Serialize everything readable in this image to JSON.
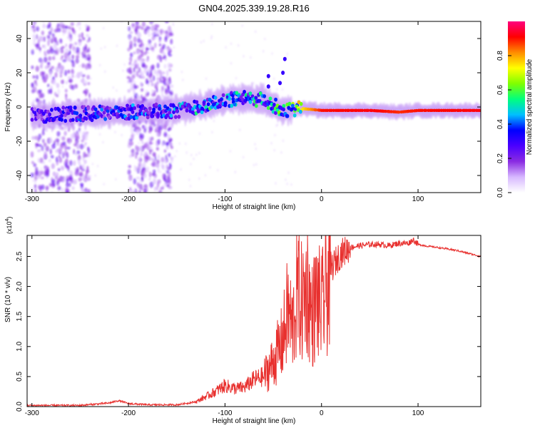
{
  "title": "GN04.2025.339.19.28.R16",
  "chart_data": [
    {
      "type": "heatmap",
      "name": "spectrogram",
      "xlabel": "Height of straight line (km)",
      "ylabel": "Frequency (Hz)",
      "xlim": [
        -305,
        165
      ],
      "ylim": [
        -50,
        50
      ],
      "xticks": [
        -300,
        -200,
        -100,
        0,
        100
      ],
      "xtick_labels": [
        "-300",
        "-200",
        "-100",
        "0",
        "100"
      ],
      "yticks": [
        -40,
        -20,
        0,
        20,
        40
      ],
      "ytick_labels": [
        "-40",
        "-20",
        "0",
        "20",
        "40"
      ],
      "colorbar": {
        "label": "Normalized spectral amplitude",
        "range": [
          0,
          1
        ],
        "ticks": [
          0.0,
          0.2,
          0.4,
          0.6,
          0.8
        ],
        "tick_labels": [
          "0.0",
          "0.2",
          "0.4",
          "0.6",
          "0.8"
        ],
        "colors": [
          "#ffffff",
          "#d7b8ff",
          "#8a2be2",
          "#4b00ff",
          "#0000ff",
          "#00bfff",
          "#00ff7f",
          "#7fff00",
          "#ffff00",
          "#ff8c00",
          "#ff0000",
          "#ff007f"
        ]
      },
      "band": [
        {
          "x": -300,
          "center": -5,
          "amp": 0.25
        },
        {
          "x": -250,
          "center": -4,
          "amp": 0.35
        },
        {
          "x": -200,
          "center": -3,
          "amp": 0.38
        },
        {
          "x": -150,
          "center": -2,
          "amp": 0.42
        },
        {
          "x": -120,
          "center": 1,
          "amp": 0.5
        },
        {
          "x": -100,
          "center": 4,
          "amp": 0.45
        },
        {
          "x": -80,
          "center": 5,
          "amp": 0.48
        },
        {
          "x": -60,
          "center": 4,
          "amp": 0.5
        },
        {
          "x": -40,
          "center": -2,
          "amp": 0.55
        },
        {
          "x": -20,
          "center": -1,
          "amp": 0.75
        },
        {
          "x": 0,
          "center": -2,
          "amp": 0.9
        },
        {
          "x": 50,
          "center": -2,
          "amp": 0.92
        },
        {
          "x": 80,
          "center": -3,
          "amp": 0.88
        },
        {
          "x": 100,
          "center": -2,
          "amp": 0.9
        },
        {
          "x": 165,
          "center": -2,
          "amp": 0.92
        }
      ]
    },
    {
      "type": "line",
      "name": "snr",
      "xlabel": "Height of straight line (km)",
      "ylabel": "SNR (10 * v/v)",
      "scale_label": "(x10",
      "scale_exp": "4",
      "color": "#e8312f",
      "xlim": [
        -305,
        165
      ],
      "ylim": [
        0,
        2.85
      ],
      "xticks": [
        -300,
        -200,
        -100,
        0,
        100
      ],
      "xtick_labels": [
        "-300",
        "-200",
        "-100",
        "0",
        "100"
      ],
      "yticks": [
        0.0,
        0.5,
        1.0,
        1.5,
        2.0,
        2.5
      ],
      "ytick_labels": [
        "0.0",
        "0.5",
        "1.0",
        "1.5",
        "2.0",
        "2.5"
      ],
      "x": [
        -305,
        -250,
        -220,
        -210,
        -200,
        -180,
        -150,
        -130,
        -110,
        -100,
        -90,
        -80,
        -70,
        -60,
        -50,
        -40,
        -35,
        -30,
        -25,
        -20,
        -15,
        -10,
        -5,
        0,
        10,
        20,
        30,
        40,
        50,
        60,
        70,
        80,
        90,
        95,
        100,
        110,
        120,
        140,
        165
      ],
      "y": [
        0.02,
        0.02,
        0.06,
        0.1,
        0.05,
        0.03,
        0.03,
        0.08,
        0.25,
        0.35,
        0.3,
        0.32,
        0.45,
        0.5,
        0.75,
        1.1,
        1.6,
        1.3,
        1.9,
        1.7,
        2.0,
        1.5,
        1.8,
        1.6,
        2.3,
        2.55,
        2.65,
        2.68,
        2.7,
        2.7,
        2.68,
        2.72,
        2.72,
        2.78,
        2.7,
        2.67,
        2.65,
        2.6,
        2.5
      ]
    }
  ]
}
